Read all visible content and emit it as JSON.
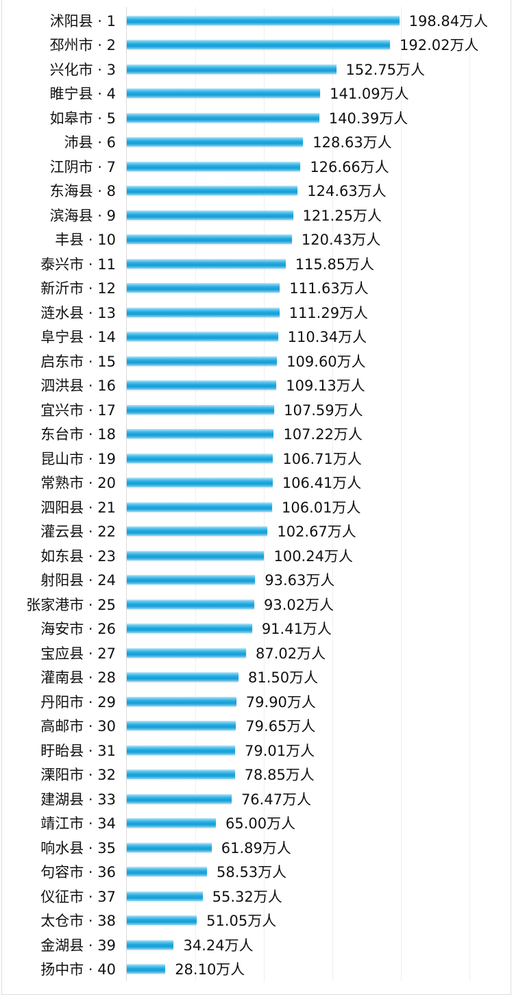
{
  "chart_data": {
    "type": "bar",
    "orientation": "horizontal",
    "title": "",
    "xlabel": "",
    "ylabel": "",
    "unit": "万人",
    "xlim": [
      0,
      280
    ],
    "grid": {
      "vertical": true,
      "interval": 50
    },
    "legend": null,
    "bar_color": "#1aa7de",
    "categories": [
      "沭阳县 · 1",
      "邳州市 · 2",
      "兴化市 · 3",
      "睢宁县 · 4",
      "如皋市 · 5",
      "沛县 · 6",
      "江阴市 · 7",
      "东海县 · 8",
      "滨海县 · 9",
      "丰县 · 10",
      "泰兴市 · 11",
      "新沂市 · 12",
      "涟水县 · 13",
      "阜宁县 · 14",
      "启东市 · 15",
      "泗洪县 · 16",
      "宜兴市 · 17",
      "东台市 · 18",
      "昆山市 · 19",
      "常熟市 · 20",
      "泗阳县 · 21",
      "灌云县 · 22",
      "如东县 · 23",
      "射阳县 · 24",
      "张家港市 · 25",
      "海安市 · 26",
      "宝应县 · 27",
      "灌南县 · 28",
      "丹阳市 · 29",
      "高邮市 · 30",
      "盱眙县 · 31",
      "溧阳市 · 32",
      "建湖县 · 33",
      "靖江市 · 34",
      "响水县 · 35",
      "句容市 · 36",
      "仪征市 · 37",
      "太仓市 · 38",
      "金湖县 · 39",
      "扬中市 · 40"
    ],
    "values": [
      198.84,
      192.02,
      152.75,
      141.09,
      140.39,
      128.63,
      126.66,
      124.63,
      121.25,
      120.43,
      115.85,
      111.63,
      111.29,
      110.34,
      109.6,
      109.13,
      107.59,
      107.22,
      106.71,
      106.41,
      106.01,
      102.67,
      100.24,
      93.63,
      93.02,
      91.41,
      87.02,
      81.5,
      79.9,
      79.65,
      79.01,
      78.85,
      76.47,
      65.0,
      61.89,
      58.53,
      55.32,
      51.05,
      34.24,
      28.1
    ],
    "value_labels": [
      "198.84万人",
      "192.02万人",
      "152.75万人",
      "141.09万人",
      "140.39万人",
      "128.63万人",
      "126.66万人",
      "124.63万人",
      "121.25万人",
      "120.43万人",
      "115.85万人",
      "111.63万人",
      "111.29万人",
      "110.34万人",
      "109.60万人",
      "109.13万人",
      "107.59万人",
      "107.22万人",
      "106.71万人",
      "106.41万人",
      "106.01万人",
      "102.67万人",
      "100.24万人",
      "93.63万人",
      "93.02万人",
      "91.41万人",
      "87.02万人",
      "81.50万人",
      "79.90万人",
      "79.65万人",
      "79.01万人",
      "78.85万人",
      "76.47万人",
      "65.00万人",
      "61.89万人",
      "58.53万人",
      "55.32万人",
      "51.05万人",
      "34.24万人",
      "28.10万人"
    ]
  }
}
